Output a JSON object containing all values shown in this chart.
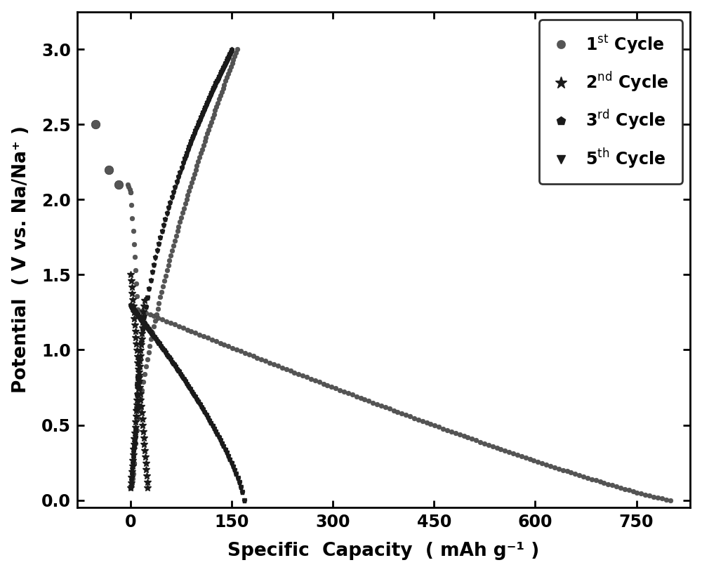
{
  "xlabel": "Specific  Capacity  ( mAh g⁻¹ )",
  "ylabel": "Potential  ( V vs. Na/Na⁺ )",
  "xlim": [
    -80,
    830
  ],
  "ylim": [
    -0.05,
    3.25
  ],
  "xticks": [
    0,
    150,
    300,
    450,
    600,
    750
  ],
  "yticks": [
    0.0,
    0.5,
    1.0,
    1.5,
    2.0,
    2.5,
    3.0
  ],
  "background_color": "#ffffff",
  "figsize": [
    10.0,
    8.15
  ],
  "dpi": 100,
  "dark_color": "#1a1a1a",
  "circle_color": "#555555",
  "ms_circle": 5,
  "ms_star": 7,
  "ms_pent": 5,
  "ms_tri": 5
}
